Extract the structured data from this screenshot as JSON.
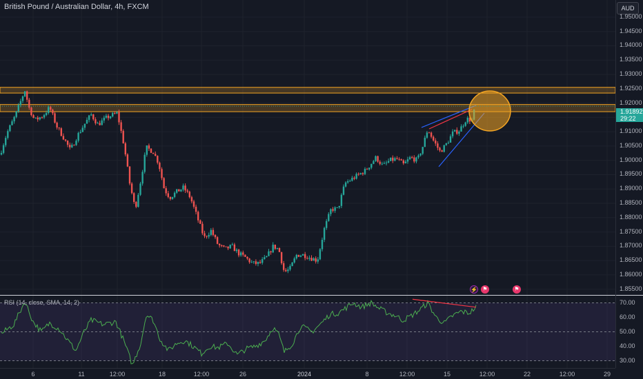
{
  "header": {
    "symbol_title": "British Pound / Australian Dollar, 4h, FXCM",
    "currency_button": "AUD"
  },
  "price_axis": {
    "labels": [
      "1.95000",
      "1.94500",
      "1.94000",
      "1.93500",
      "1.93000",
      "1.92500",
      "1.92000",
      "1.91500",
      "1.91000",
      "1.90500",
      "1.90000",
      "1.89500",
      "1.89000",
      "1.88500",
      "1.88000",
      "1.87500",
      "1.87000",
      "1.86500",
      "1.86000",
      "1.85500"
    ]
  },
  "last_price": {
    "price": "1.91892",
    "countdown": "29:22",
    "color": "#26a69a"
  },
  "time_axis": {
    "labels": [
      "6",
      "11",
      "12:00",
      "18",
      "12:00",
      "26",
      "2024",
      "8",
      "12:00",
      "15",
      "12:00",
      "22",
      "12:00",
      "29"
    ]
  },
  "rsi_panel": {
    "title": "RSI (14, close, SMA, 14, 2)",
    "axis_labels": [
      "70.00",
      "60.00",
      "50.00",
      "40.00",
      "30.00"
    ]
  },
  "events": [
    {
      "icon": "flash-icon",
      "glyph": "⚡"
    },
    {
      "icon": "flag-event-icon",
      "glyph": "⚑"
    },
    {
      "icon": "flag-event-icon",
      "glyph": "⚑"
    }
  ],
  "colors": {
    "bull": "#26a69a",
    "bear": "#ef5350",
    "zone": "#f5a623",
    "trendline_blue": "#2962ff",
    "trendline_red": "#f23645",
    "rsi_line": "#4caf50",
    "rsi_band": "#7e57c2"
  },
  "chart_data": {
    "type": "candlestick",
    "title": "British Pound / Australian Dollar, 4h, FXCM",
    "y_range": [
      1.853,
      1.956
    ],
    "resistance_zones": [
      [
        1.9235,
        1.9255
      ],
      [
        1.917,
        1.9195
      ]
    ],
    "price_ohlc_approx": [
      {
        "segment": "Dec 4-6",
        "high": 1.9268,
        "low": 1.9005
      },
      {
        "segment": "Dec 11",
        "high": 1.9205,
        "low": 1.902
      },
      {
        "segment": "Dec 18",
        "high": 1.9062,
        "low": 1.8805
      },
      {
        "segment": "Dec 26-29",
        "high": 1.873,
        "low": 1.8585
      },
      {
        "segment": "Jan 2-8",
        "high": 1.887,
        "low": 1.8595
      },
      {
        "segment": "Jan 8-12",
        "high": 1.904,
        "low": 1.889
      },
      {
        "segment": "Jan 15-17",
        "high": 1.9195,
        "low": 1.8985
      }
    ],
    "last_close": 1.91892,
    "rsi": {
      "period": 14,
      "levels": [
        70,
        50,
        30
      ],
      "y_range": [
        25,
        75
      ],
      "last": 67
    }
  }
}
